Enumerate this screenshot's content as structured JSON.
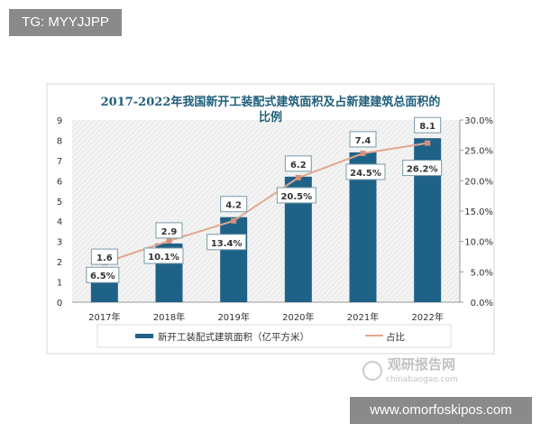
{
  "watermarks": {
    "tg": "TG: MYYJJPP",
    "site": "www.omorfoskipos.com",
    "logo_cn": "观研报告网",
    "logo_en": "chinabaogao.com"
  },
  "chart_data": {
    "type": "bar",
    "title": "2017-2022年我国新开工装配式建筑面积及占新建建筑总面积的比例",
    "title_lines": [
      "2017-2022年我国新开工装配式建筑面积及占新建建筑总面积的",
      "比例"
    ],
    "categories": [
      "2017年",
      "2018年",
      "2019年",
      "2020年",
      "2021年",
      "2022年"
    ],
    "series": [
      {
        "name": "新开工装配式建筑面积（亿平方米）",
        "type": "bar",
        "axis": "left",
        "values": [
          1.6,
          2.9,
          4.2,
          6.2,
          7.4,
          8.1
        ],
        "labels": [
          "1.6",
          "2.9",
          "4.2",
          "6.2",
          "7.4",
          "8.1"
        ],
        "color": "#1f6287"
      },
      {
        "name": "占比",
        "type": "line",
        "axis": "right",
        "values": [
          6.5,
          10.1,
          13.4,
          20.5,
          24.5,
          26.2
        ],
        "labels": [
          "6.5%",
          "10.1%",
          "13.4%",
          "20.5%",
          "24.5%",
          "26.2%"
        ],
        "color": "#e3a68f"
      }
    ],
    "ylim": [
      0,
      9
    ],
    "yticks": [
      "0",
      "1",
      "2",
      "3",
      "4",
      "5",
      "6",
      "7",
      "8",
      "9"
    ],
    "y2lim": [
      0,
      30
    ],
    "y2ticks": [
      "0.0%",
      "5.0%",
      "10.0%",
      "15.0%",
      "20.0%",
      "25.0%",
      "30.0%"
    ],
    "legend": "bottom",
    "grid": false,
    "title_color": "#1f5f7a"
  }
}
